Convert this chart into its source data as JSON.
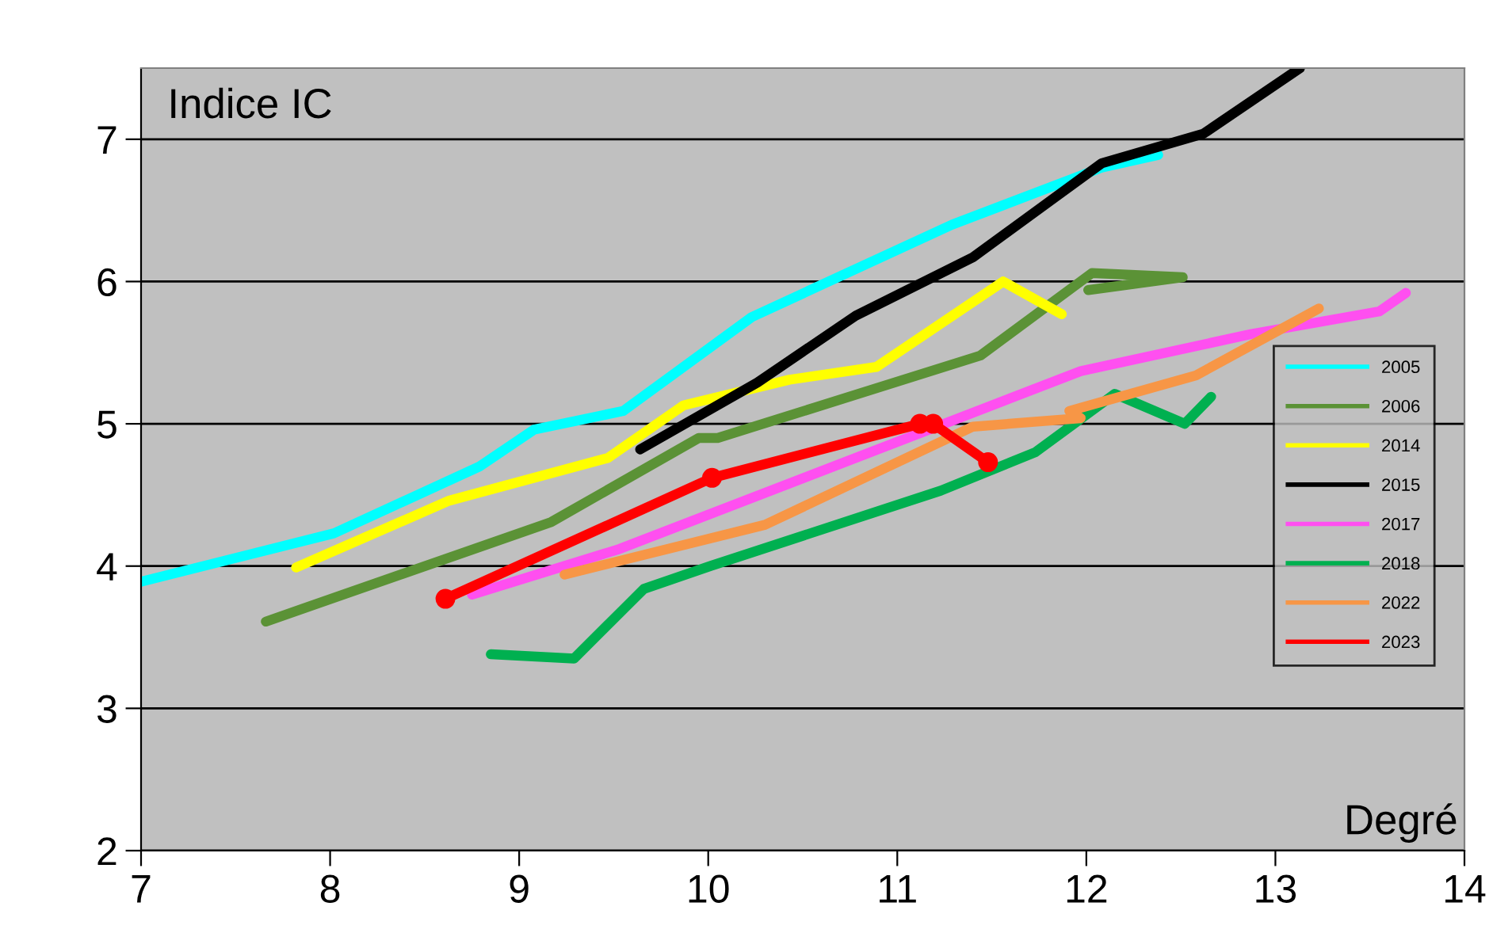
{
  "chart_data": {
    "type": "line",
    "xlabel": "Degré",
    "ylabel": "Indice IC",
    "xlim": [
      7,
      14
    ],
    "ylim": [
      2,
      7.5
    ],
    "xticks": [
      7,
      8,
      9,
      10,
      11,
      12,
      13,
      14
    ],
    "yticks": [
      2,
      3,
      4,
      5,
      6,
      7
    ],
    "grid": "y",
    "legend": "right",
    "line_style": "solid",
    "series": [
      {
        "name": "2005",
        "color": "#00ffff",
        "marker": "none",
        "x": [
          7.0,
          8.02,
          8.79,
          9.08,
          9.55,
          10.23,
          11.29,
          12.08,
          12.38
        ],
        "values": [
          3.89,
          4.23,
          4.7,
          4.96,
          5.09,
          5.75,
          6.4,
          6.8,
          6.89
        ]
      },
      {
        "name": "2006",
        "color": "#5b9236",
        "marker": "none",
        "x": [
          7.66,
          9.17,
          9.95,
          10.05,
          11.44,
          12.03,
          12.51,
          12.01
        ],
        "values": [
          3.61,
          4.31,
          4.9,
          4.9,
          5.48,
          6.06,
          6.03,
          5.94
        ]
      },
      {
        "name": "2014",
        "color": "#ffff00",
        "marker": "none",
        "x": [
          7.82,
          8.63,
          9.47,
          9.87,
          10.43,
          10.89,
          11.56,
          11.87
        ],
        "values": [
          3.99,
          4.46,
          4.76,
          5.13,
          5.31,
          5.4,
          6.0,
          5.77
        ]
      },
      {
        "name": "2015",
        "color": "#000000",
        "marker": "none",
        "x": [
          9.64,
          10.26,
          10.78,
          11.4,
          12.08,
          12.62,
          13.13
        ],
        "values": [
          4.82,
          5.29,
          5.76,
          6.17,
          6.83,
          7.04,
          7.5
        ]
      },
      {
        "name": "2017",
        "color": "#ff4ff0",
        "marker": "none",
        "x": [
          8.75,
          9.53,
          11.97,
          12.87,
          13.55,
          13.69
        ],
        "values": [
          3.8,
          4.12,
          5.37,
          5.63,
          5.79,
          5.92
        ]
      },
      {
        "name": "2018",
        "color": "#00b050",
        "marker": "none",
        "x": [
          8.85,
          9.29,
          9.66,
          10.01,
          11.23,
          11.73,
          12.15,
          12.52,
          12.66
        ],
        "values": [
          3.38,
          3.35,
          3.84,
          4.0,
          4.53,
          4.8,
          5.21,
          5.0,
          5.19
        ]
      },
      {
        "name": "2022",
        "color": "#f79646",
        "marker": "none",
        "x": [
          9.24,
          10.3,
          11.4,
          11.97,
          11.91,
          12.58,
          13.23
        ],
        "values": [
          3.94,
          4.29,
          4.98,
          5.04,
          5.09,
          5.34,
          5.81
        ]
      },
      {
        "name": "2023",
        "color": "#ff0000",
        "marker": "circle",
        "x": [
          8.61,
          10.02,
          11.12,
          11.19,
          11.48
        ],
        "values": [
          3.77,
          4.62,
          5.0,
          5.0,
          4.73
        ]
      }
    ]
  }
}
